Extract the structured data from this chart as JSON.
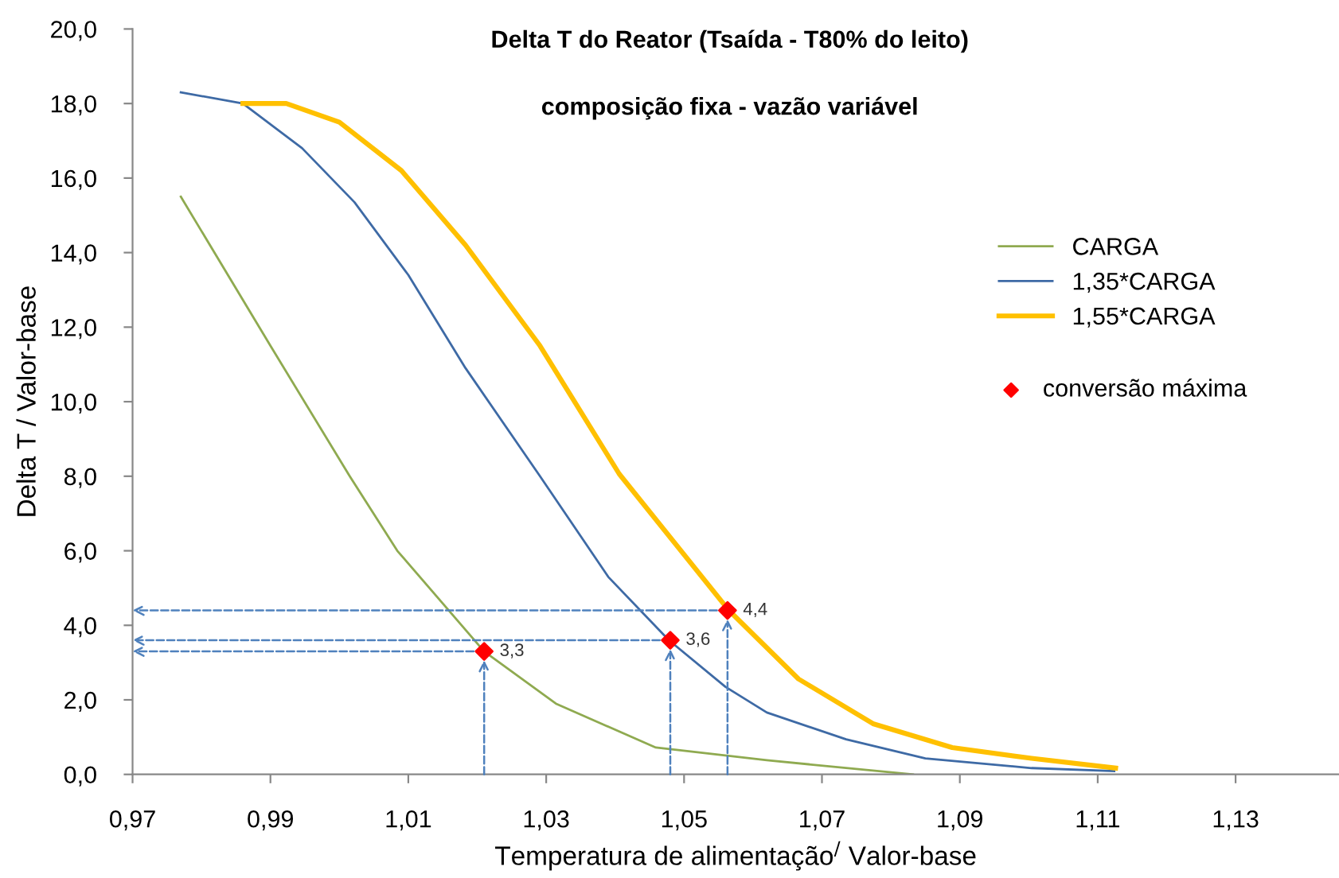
{
  "chart_data": {
    "type": "line",
    "title": "Delta T do Reator (Tsaída - T80% do leito)",
    "subtitle": "composição fixa - vazão variável",
    "xlabel": "Temperatura de alimentação$^{/}$ Valor-base",
    "ylabel": "Delta T / Valor-base",
    "xlim": [
      0.97,
      1.145
    ],
    "ylim": [
      0,
      20
    ],
    "xticks": [
      {
        "value": 0.97,
        "label": "0,97"
      },
      {
        "value": 0.99,
        "label": "0,99"
      },
      {
        "value": 1.01,
        "label": "1,01"
      },
      {
        "value": 1.03,
        "label": "1,03"
      },
      {
        "value": 1.05,
        "label": "1,05"
      },
      {
        "value": 1.07,
        "label": "1,07"
      },
      {
        "value": 1.09,
        "label": "1,09"
      },
      {
        "value": 1.11,
        "label": "1,11"
      },
      {
        "value": 1.13,
        "label": "1,13"
      }
    ],
    "yticks": [
      {
        "value": 0,
        "label": "0,0"
      },
      {
        "value": 2,
        "label": "2,0"
      },
      {
        "value": 4,
        "label": "4,0"
      },
      {
        "value": 6,
        "label": "6,0"
      },
      {
        "value": 8,
        "label": "8,0"
      },
      {
        "value": 10,
        "label": "10,0"
      },
      {
        "value": 12,
        "label": "12,0"
      },
      {
        "value": 14,
        "label": "14,0"
      },
      {
        "value": 16,
        "label": "16,0"
      },
      {
        "value": 18,
        "label": "18,0"
      },
      {
        "value": 20,
        "label": "20,0"
      }
    ],
    "grid": false,
    "legend": "right",
    "marker": "none",
    "series": [
      {
        "name": "CARGA",
        "color": "#8faa50",
        "x": [
          0.977,
          0.99,
          1.0015,
          1.0084,
          1.021,
          1.0314,
          1.0459,
          1.062,
          1.0832
        ],
        "values": [
          15.5,
          11.5,
          8.0,
          6.0,
          3.3,
          1.9,
          0.72,
          0.38,
          0.0
        ]
      },
      {
        "name": "1,35*CARGA",
        "color": "#3e6aa5",
        "x": [
          0.977,
          0.986,
          0.9946,
          1.0022,
          1.01,
          1.0183,
          1.0291,
          1.039,
          1.0478,
          1.056,
          1.062,
          1.0735,
          1.085,
          1.1004,
          1.1124
        ],
        "values": [
          18.3,
          18.0,
          16.8,
          15.35,
          13.4,
          10.9,
          8.0,
          5.3,
          3.6,
          2.35,
          1.66,
          0.94,
          0.43,
          0.17,
          0.09
        ]
      },
      {
        "name": "1,55*CARGA",
        "color": "#ffc000",
        "x": [
          0.986,
          0.9923,
          1.0,
          1.009,
          1.0183,
          1.0291,
          1.0406,
          1.0565,
          1.0666,
          1.0774,
          1.0889,
          1.1004,
          1.1126
        ],
        "values": [
          18.0,
          18.0,
          17.5,
          16.2,
          14.2,
          11.5,
          8.06,
          4.4,
          2.56,
          1.36,
          0.72,
          0.43,
          0.17
        ]
      },
      {
        "name": "conversão máxima",
        "type": "scatter",
        "marker": "diamond",
        "color": "#ff0000",
        "x": [
          1.021,
          1.048,
          1.0563
        ],
        "values": [
          3.3,
          3.6,
          4.4
        ],
        "value_labels": [
          "3,3",
          "3,6",
          "4,4"
        ]
      }
    ]
  }
}
